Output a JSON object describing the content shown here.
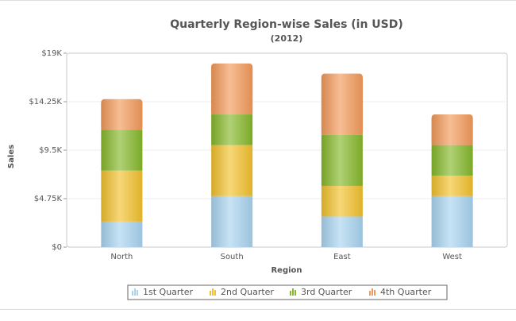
{
  "chart_data": {
    "type": "bar",
    "stacked": true,
    "title": "Quarterly Region-wise Sales (in USD)",
    "subtitle": "(2012)",
    "xlabel": "Region",
    "ylabel": "Sales",
    "categories": [
      "North",
      "South",
      "East",
      "West"
    ],
    "ylim": [
      0,
      19000
    ],
    "y_ticks": [
      0,
      4750,
      9500,
      14250,
      19000
    ],
    "y_tick_labels": [
      "$0",
      "$4.75K",
      "$9.5K",
      "$14.25K",
      "$19K"
    ],
    "grid": true,
    "legend_position": "bottom",
    "series": [
      {
        "name": "1st Quarter",
        "values": [
          2500,
          5000,
          3000,
          5000
        ],
        "color": "#a9d4f0"
      },
      {
        "name": "2nd Quarter",
        "values": [
          5000,
          5000,
          3000,
          2000
        ],
        "color": "#f2c12e"
      },
      {
        "name": "3rd Quarter",
        "values": [
          4000,
          3000,
          5000,
          3000
        ],
        "color": "#86b82a"
      },
      {
        "name": "4th Quarter",
        "values": [
          3000,
          5000,
          6000,
          3000
        ],
        "color": "#f39a5a"
      }
    ]
  }
}
